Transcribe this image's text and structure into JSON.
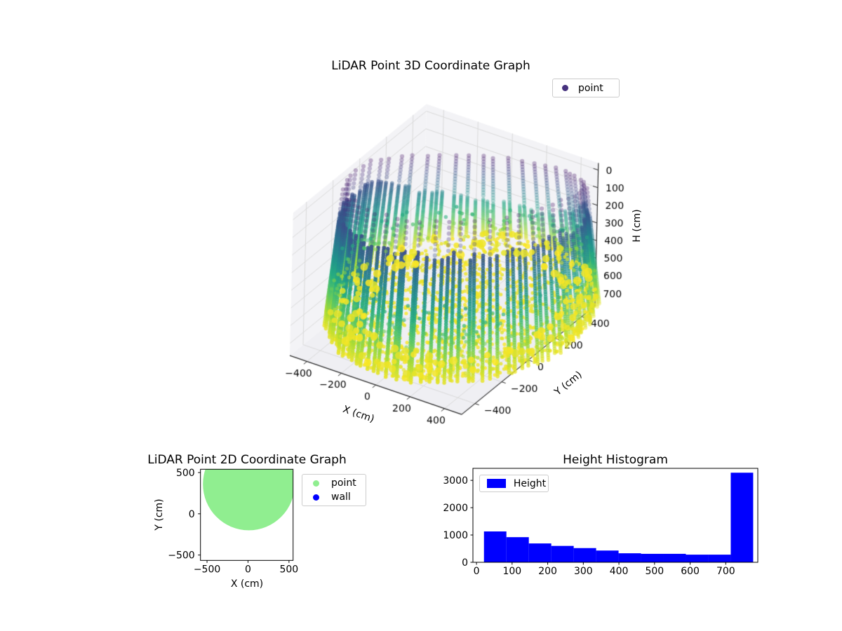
{
  "chart_data": [
    {
      "id": "lidar3d",
      "type": "scatter3d",
      "title": "LiDAR Point 3D Coordinate Graph",
      "xlabel": "X (cm)",
      "ylabel": "Y (cm)",
      "zlabel": "H (cm)",
      "xticks": [
        -400,
        -200,
        0,
        200,
        400
      ],
      "yticks": [
        -400,
        -200,
        0,
        200,
        400
      ],
      "zticks": [
        0,
        100,
        200,
        300,
        400,
        500,
        600,
        700
      ],
      "xlim": [
        -500,
        500
      ],
      "ylim": [
        -500,
        500
      ],
      "zlim": [
        -40,
        770
      ],
      "z_axis_inverted": true,
      "legend": [
        {
          "label": "point",
          "color": "#46327e"
        }
      ],
      "colormap": "viridis",
      "point_cloud": {
        "shape": "cylindrical room scan",
        "radius_cm": 560,
        "height_range_cm": [
          0,
          745
        ],
        "open_top_rim_cm": 170,
        "rim_depth_back_right_cm": 450,
        "floor_height_cm": 740,
        "color_encodes": "H (cm): 0 = dark purple (top), 745 = yellow (floor)",
        "sparse_ceiling_columns": true,
        "depth_fade": true
      }
    },
    {
      "id": "lidar2d",
      "type": "scatter",
      "title": "LiDAR Point 2D Coordinate Graph",
      "xlabel": "X (cm)",
      "ylabel": "Y (cm)",
      "xticks": [
        -500,
        0,
        500
      ],
      "yticks": [
        -500,
        0,
        500
      ],
      "xlim": [
        -580,
        550
      ],
      "ylim": [
        -565,
        540
      ],
      "legend": [
        {
          "label": "point",
          "color": "#90ee90"
        },
        {
          "label": "wall",
          "color": "#0000ff"
        }
      ],
      "point_region": {
        "shape": "disk",
        "cx": 10,
        "cy": 360,
        "r": 560,
        "color": "#90ee90"
      }
    },
    {
      "id": "height_histogram",
      "type": "histogram",
      "title": "Height Histogram",
      "legend": [
        {
          "label": "Height",
          "color": "#0000ff"
        }
      ],
      "bar_color": "#0000ff",
      "bin_edges": [
        21,
        84,
        147,
        210,
        273,
        336,
        399,
        462,
        525,
        588,
        651,
        714,
        777
      ],
      "counts": [
        1130,
        920,
        690,
        600,
        520,
        430,
        330,
        310,
        310,
        280,
        280,
        3280
      ],
      "xticks": [
        0,
        100,
        200,
        300,
        400,
        500,
        600,
        700
      ],
      "yticks": [
        0,
        1000,
        2000,
        3000
      ],
      "xlim": [
        -10,
        790
      ],
      "ylim": [
        0,
        3440
      ]
    }
  ]
}
